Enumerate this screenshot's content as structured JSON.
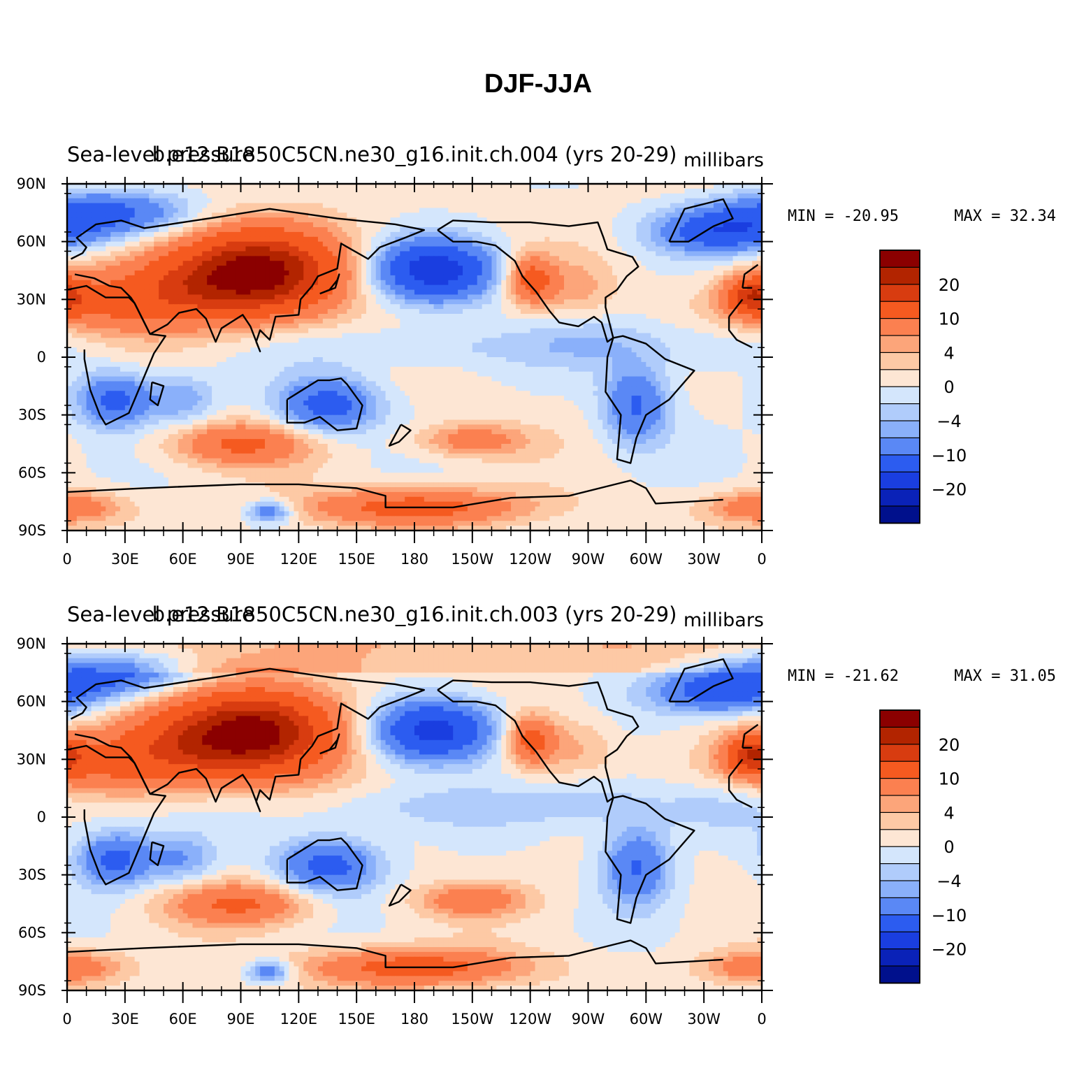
{
  "title": "DJF-JJA",
  "panels": [
    {
      "left_string": "Sea-level pressure",
      "center_string": "b.e12.B1850C5CN.ne30_g16.init.ch.004 (yrs 20-29)",
      "units": "millibars",
      "min_label": "MIN = -20.95",
      "max_label": "MAX = 32.34",
      "min": -20.95,
      "max": 32.34,
      "variant": 0
    },
    {
      "left_string": "Sea-level pressure",
      "center_string": "b.e12.B1850C5CN.ne30_g16.init.ch.003 (yrs 20-29)",
      "units": "millibars",
      "min_label": "MIN = -21.62",
      "max_label": "MAX = 31.05",
      "min": -21.62,
      "max": 31.05,
      "variant": 1
    }
  ],
  "lat_ticks": [
    "90N",
    "60N",
    "30N",
    "0",
    "30S",
    "60S",
    "90S"
  ],
  "lon_ticks": [
    "0",
    "30E",
    "60E",
    "90E",
    "120E",
    "150E",
    "180",
    "150W",
    "120W",
    "90W",
    "60W",
    "30W",
    "0"
  ],
  "colorbar": {
    "levels": [
      -24,
      -20,
      -16,
      -10,
      -6,
      -4,
      -2,
      0,
      2,
      4,
      6,
      10,
      16,
      20,
      24
    ],
    "labels": [
      "20",
      "10",
      "4",
      "0",
      "−4",
      "−10",
      "−20"
    ],
    "colors": [
      "#8b0000",
      "#b22400",
      "#d83c10",
      "#f55a20",
      "#fb8050",
      "#fca57a",
      "#fdc9a5",
      "#fde6d4",
      "#d4e6fc",
      "#b0ccfb",
      "#8ab0fa",
      "#5a88f5",
      "#2c5cf0",
      "#1a3ee0",
      "#0a22b8",
      "#00108c"
    ]
  },
  "chart_data": {
    "type": "heatmap",
    "variable": "Sea-level pressure",
    "units": "millibars",
    "x_ticks": [
      "0",
      "30E",
      "60E",
      "90E",
      "120E",
      "150E",
      "180",
      "150W",
      "120W",
      "90W",
      "60W",
      "30W",
      "0"
    ],
    "y_ticks": [
      "90N",
      "60N",
      "30N",
      "0",
      "30S",
      "60S",
      "90S"
    ],
    "xlim": [
      0,
      360
    ],
    "ylim": [
      -90,
      90
    ],
    "contour_levels": [
      -24,
      -20,
      -16,
      -10,
      -6,
      -4,
      -2,
      0,
      2,
      4,
      6,
      10,
      16,
      20,
      24
    ],
    "panels": [
      {
        "case": "b.e12.B1850C5CN.ne30_g16.init.ch.004 (yrs 20-29)",
        "min": -20.95,
        "max": 32.34
      },
      {
        "case": "b.e12.B1850C5CN.ne30_g16.init.ch.003 (yrs 20-29)",
        "min": -21.62,
        "max": 31.05
      }
    ]
  }
}
